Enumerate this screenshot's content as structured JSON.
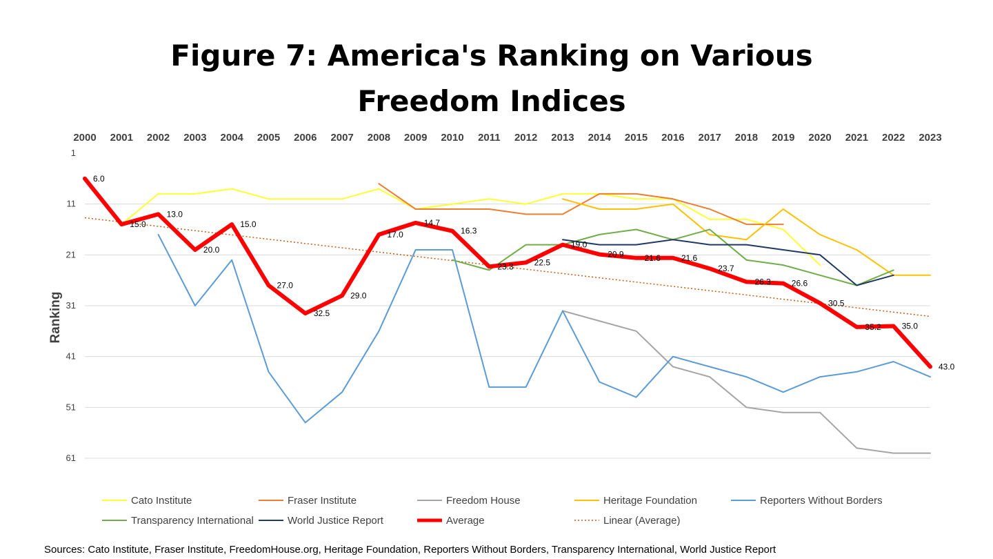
{
  "chart_data": {
    "type": "line",
    "title_line1": "Figure 7: America's Ranking on Various",
    "title_line2": "Freedom Indices",
    "ylabel": "Ranking",
    "xlabel": "",
    "x": [
      2000,
      2001,
      2002,
      2003,
      2004,
      2005,
      2006,
      2007,
      2008,
      2009,
      2010,
      2011,
      2012,
      2013,
      2014,
      2015,
      2016,
      2017,
      2018,
      2019,
      2020,
      2021,
      2022,
      2023
    ],
    "ylim": [
      1,
      61
    ],
    "y_inverted": true,
    "y_ticks": [
      1,
      11,
      21,
      31,
      41,
      51,
      61
    ],
    "grid": true,
    "legend_position": "bottom",
    "series": [
      {
        "name": "Cato Institute",
        "color": "#ffff33",
        "width": 2,
        "values": [
          null,
          15,
          9,
          9,
          8,
          10,
          10,
          10,
          8,
          12,
          11,
          10,
          11,
          9,
          9,
          10,
          10,
          14,
          14,
          16,
          23,
          null,
          null,
          null
        ]
      },
      {
        "name": "Fraser Institute",
        "color": "#ed7d31",
        "width": 2,
        "values": [
          null,
          null,
          null,
          null,
          null,
          null,
          null,
          null,
          7,
          12,
          12,
          12,
          13,
          13,
          9,
          9,
          10,
          12,
          15,
          15,
          null,
          null,
          null,
          null
        ]
      },
      {
        "name": "Freedom House",
        "color": "#a5a5a5",
        "width": 2,
        "values": [
          null,
          null,
          null,
          null,
          null,
          null,
          null,
          null,
          null,
          null,
          null,
          null,
          null,
          32,
          34,
          36,
          43,
          45,
          51,
          52,
          52,
          59,
          60,
          60
        ]
      },
      {
        "name": "Heritage Foundation",
        "color": "#ffc000",
        "width": 2,
        "values": [
          null,
          null,
          null,
          null,
          null,
          null,
          null,
          null,
          null,
          null,
          null,
          null,
          null,
          10,
          12,
          12,
          11,
          17,
          18,
          12,
          17,
          20,
          25,
          25
        ]
      },
      {
        "name": "Reporters Without Borders",
        "color": "#5b9bd5",
        "width": 2,
        "values": [
          null,
          null,
          17,
          31,
          22,
          44,
          54,
          48,
          36,
          20,
          20,
          47,
          47,
          32,
          46,
          49,
          41,
          43,
          45,
          48,
          45,
          44,
          42,
          45
        ]
      },
      {
        "name": "Transparency International",
        "color": "#70ad47",
        "width": 2,
        "values": [
          null,
          null,
          null,
          null,
          null,
          null,
          null,
          null,
          null,
          null,
          22,
          24,
          19,
          19,
          17,
          16,
          18,
          16,
          22,
          23,
          25,
          27,
          24,
          null
        ]
      },
      {
        "name": "World Justice Report",
        "color": "#1f3864",
        "width": 2,
        "values": [
          null,
          null,
          null,
          null,
          null,
          null,
          null,
          null,
          null,
          null,
          null,
          null,
          null,
          18,
          19,
          19,
          18,
          19,
          19,
          20,
          21,
          27,
          25,
          null
        ]
      },
      {
        "name": "Average",
        "color": "#ff0000",
        "width": 6,
        "values": [
          6.0,
          15.0,
          13.0,
          20.0,
          15.0,
          27.0,
          32.5,
          29.0,
          17.0,
          14.7,
          16.3,
          23.3,
          22.5,
          19.0,
          20.9,
          21.6,
          21.6,
          23.7,
          26.3,
          26.6,
          30.5,
          35.2,
          35.0,
          43.0
        ]
      }
    ],
    "trendline": {
      "name": "Linear (Average)",
      "color": "#c55a11",
      "y_start": 13.7,
      "y_end": 33.1
    },
    "data_labels": [
      "6.0",
      "15.0",
      "13.0",
      "20.0",
      "15.0",
      "27.0",
      "32.5",
      "29.0",
      "17.0",
      "14.7",
      "16.3",
      "23.3",
      "22.5",
      "19.0",
      "20.9",
      "21.6",
      "21.6",
      "23.7",
      "26.3",
      "26.6",
      "30.5",
      "35.2",
      "35.0",
      "43.0"
    ]
  },
  "sources": "Sources: Cato Institute, Fraser Institute, FreedomHouse.org, Heritage Foundation, Reporters Without Borders, Transparency International, World Justice Report"
}
